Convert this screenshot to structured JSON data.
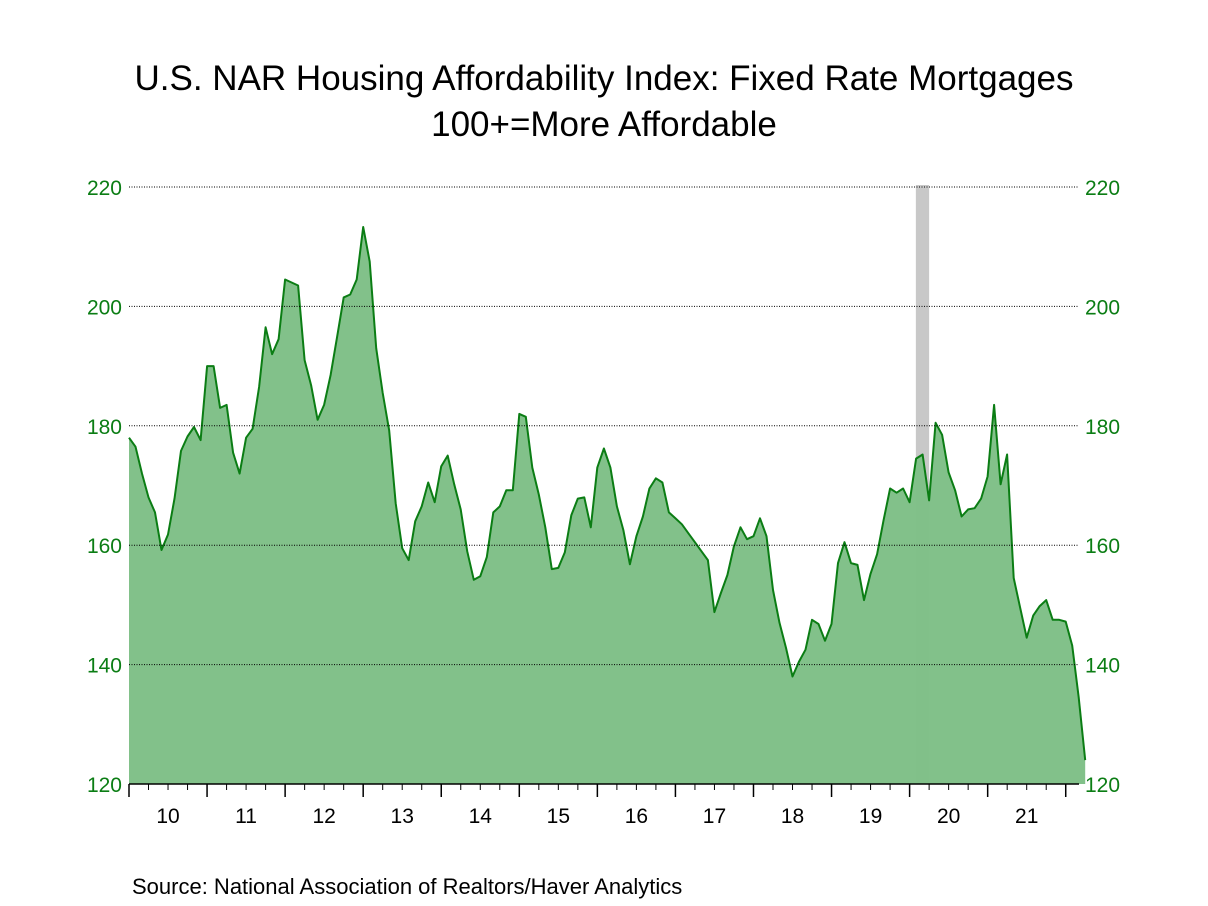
{
  "chart_data": {
    "type": "area",
    "title": "U.S. NAR Housing Affordability Index: Fixed Rate Mortgages",
    "subtitle": "100+=More Affordable",
    "source": "Source:  National Association of Realtors/Haver Analytics",
    "y_ticks": [
      "220",
      "200",
      "180",
      "160",
      "140",
      "120"
    ],
    "ylim": [
      120,
      220
    ],
    "x_labels": [
      "10",
      "11",
      "12",
      "13",
      "14",
      "15",
      "16",
      "17",
      "18",
      "19",
      "20",
      "21"
    ],
    "x_start": 2010.0,
    "x_end": 2022.17,
    "grid": true,
    "recession": [
      2020.08,
      2020.25
    ],
    "series": [
      {
        "name": "Housing Affordability Index",
        "start": 2010.0,
        "step": 0.08333,
        "values": [
          178.0,
          176.5,
          172.0,
          168.0,
          165.5,
          159.2,
          161.8,
          167.8,
          175.8,
          178.2,
          179.8,
          177.6,
          190.0,
          190.0,
          183.0,
          183.5,
          175.5,
          172.0,
          178.0,
          179.5,
          186.5,
          196.5,
          192.0,
          194.5,
          204.5,
          204.0,
          203.5,
          191.0,
          186.8,
          181.0,
          183.5,
          188.5,
          195.0,
          201.5,
          202.0,
          204.5,
          213.3,
          207.5,
          193.0,
          185.5,
          179.2,
          167.0,
          159.5,
          157.5,
          164.0,
          166.5,
          170.5,
          167.2,
          173.2,
          175.0,
          170.2,
          166.0,
          159.0,
          154.2,
          154.8,
          158.0,
          165.5,
          166.5,
          169.2,
          169.2,
          182.0,
          181.5,
          173.0,
          168.5,
          163.0,
          156.0,
          156.2,
          158.8,
          165.0,
          167.8,
          168.0,
          163.0,
          173.0,
          176.2,
          173.0,
          166.5,
          162.5,
          156.8,
          161.5,
          164.8,
          169.5,
          171.2,
          170.5,
          165.5,
          164.5,
          163.5,
          162.0,
          160.5,
          159.0,
          157.5,
          148.8,
          152.0,
          155.0,
          159.8,
          163.0,
          161.0,
          161.5,
          164.5,
          161.5,
          152.5,
          147.0,
          142.8,
          138.0,
          140.5,
          142.5,
          147.5,
          146.8,
          144.0,
          146.8,
          157.0,
          160.5,
          157.0,
          156.7,
          150.8,
          155.2,
          158.5,
          164.2,
          169.5,
          168.8,
          169.5,
          167.2,
          174.5,
          175.2,
          167.5,
          180.5,
          178.5,
          172.2,
          169.2,
          164.8,
          166.0,
          166.2,
          167.8,
          171.5,
          183.5,
          170.2,
          175.2,
          154.5,
          149.5,
          144.5,
          148.2,
          149.8,
          150.8,
          147.5,
          147.5,
          147.2,
          143.2,
          134.5,
          124.0
        ]
      }
    ],
    "colors": {
      "line": "#0b7d14",
      "fill": "#80c088",
      "axis_text": "#0b7d14",
      "recession": "#c8c8c8",
      "grid": "#000000"
    }
  }
}
